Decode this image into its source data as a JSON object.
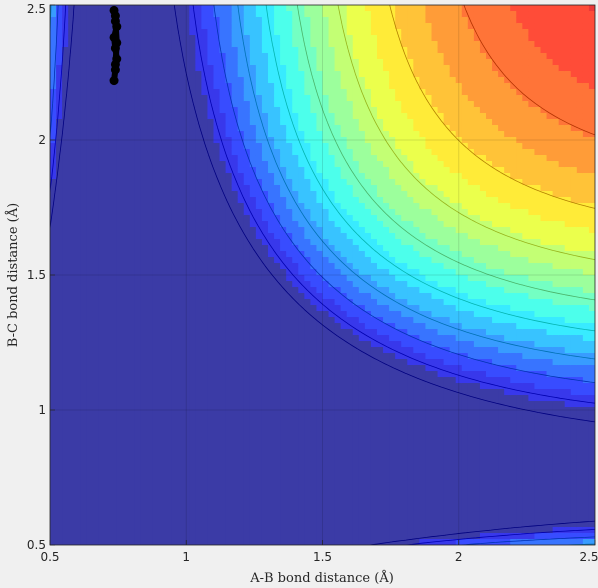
{
  "chart_data": {
    "type": "contour",
    "xlabel": "A-B bond distance (Å)",
    "ylabel": "B-C bond distance (Å)",
    "xlim": [
      0.5,
      2.5
    ],
    "ylim": [
      0.5,
      2.5
    ],
    "xticks": [
      0.5,
      1,
      1.5,
      2,
      2.5
    ],
    "xtick_labels": [
      "0.5",
      "1",
      "1.5",
      "2",
      "2.5"
    ],
    "yticks": [
      0.5,
      1,
      1.5,
      2,
      2.5
    ],
    "ytick_labels": [
      "0.5",
      "1",
      "1.5",
      "2",
      "2.5"
    ],
    "grid": true,
    "colormap": "jet",
    "min_color": "#3b3ba6",
    "max_color": "#a84848",
    "trajectory": {
      "color": "#000000",
      "x": [
        0.735,
        0.74,
        0.745,
        0.74,
        0.735,
        0.745,
        0.74,
        0.735,
        0.74,
        0.745,
        0.74
      ],
      "y": [
        2.22,
        2.26,
        2.3,
        2.34,
        2.38,
        2.42,
        2.46,
        2.48,
        2.44,
        2.36,
        2.28
      ]
    }
  }
}
